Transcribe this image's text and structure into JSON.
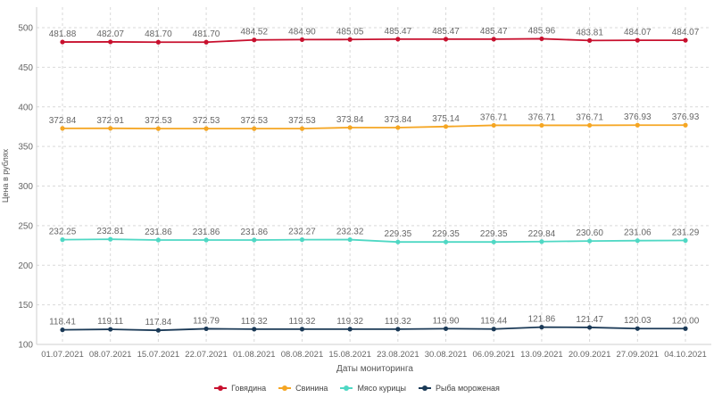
{
  "chart_data": {
    "type": "line",
    "title": "",
    "xlabel": "Даты мониторинга",
    "ylabel": "Цена в рублях",
    "ylim": [
      100,
      500
    ],
    "yticks": [
      100,
      150,
      200,
      250,
      300,
      350,
      400,
      450,
      500
    ],
    "grid": true,
    "legend_position": "bottom-center",
    "categories": [
      "01.07.2021",
      "08.07.2021",
      "15.07.2021",
      "22.07.2021",
      "01.08.2021",
      "08.08.2021",
      "15.08.2021",
      "23.08.2021",
      "30.08.2021",
      "06.09.2021",
      "13.09.2021",
      "20.09.2021",
      "27.09.2021",
      "04.10.2021"
    ],
    "series": [
      {
        "name": "Говядина",
        "color": "#c8102e",
        "values": [
          481.88,
          482.07,
          481.7,
          481.7,
          484.52,
          484.9,
          485.05,
          485.47,
          485.47,
          485.47,
          485.96,
          483.81,
          484.07,
          484.07
        ],
        "labels": [
          "481.88",
          "482.07",
          "481.70",
          "481.70",
          "484.52",
          "484.90",
          "485.05",
          "485.47",
          "485.47",
          "485.47",
          "485.96",
          "483.81",
          "484.07",
          "484.07"
        ]
      },
      {
        "name": "Свинина",
        "color": "#f5a623",
        "values": [
          372.84,
          372.91,
          372.53,
          372.53,
          372.53,
          372.53,
          373.84,
          373.84,
          375.14,
          376.71,
          376.71,
          376.71,
          376.93,
          376.93
        ],
        "labels": [
          "372.84",
          "372.91",
          "372.53",
          "372.53",
          "372.53",
          "372.53",
          "373.84",
          "373.84",
          "375.14",
          "376.71",
          "376.71",
          "376.71",
          "376.93",
          "376.93"
        ]
      },
      {
        "name": "Мясо курицы",
        "color": "#4fd8c4",
        "values": [
          232.25,
          232.81,
          231.86,
          231.86,
          231.86,
          232.27,
          232.32,
          229.35,
          229.35,
          229.35,
          229.84,
          230.6,
          231.06,
          231.29
        ],
        "labels": [
          "232.25",
          "232.81",
          "231.86",
          "231.86",
          "231.86",
          "232.27",
          "232.32",
          "229.35",
          "229.35",
          "229.35",
          "229.84",
          "230.60",
          "231.06",
          "231.29"
        ]
      },
      {
        "name": "Рыба мороженая",
        "color": "#1b3a57",
        "values": [
          118.41,
          119.11,
          117.84,
          119.79,
          119.32,
          119.32,
          119.32,
          119.32,
          119.9,
          119.44,
          121.86,
          121.47,
          120.03,
          120.0
        ],
        "labels": [
          "118.41",
          "119.11",
          "117.84",
          "119.79",
          "119.32",
          "119.32",
          "119.32",
          "119.32",
          "119.90",
          "119.44",
          "121.86",
          "121.47",
          "120.03",
          "120.00"
        ]
      }
    ]
  }
}
